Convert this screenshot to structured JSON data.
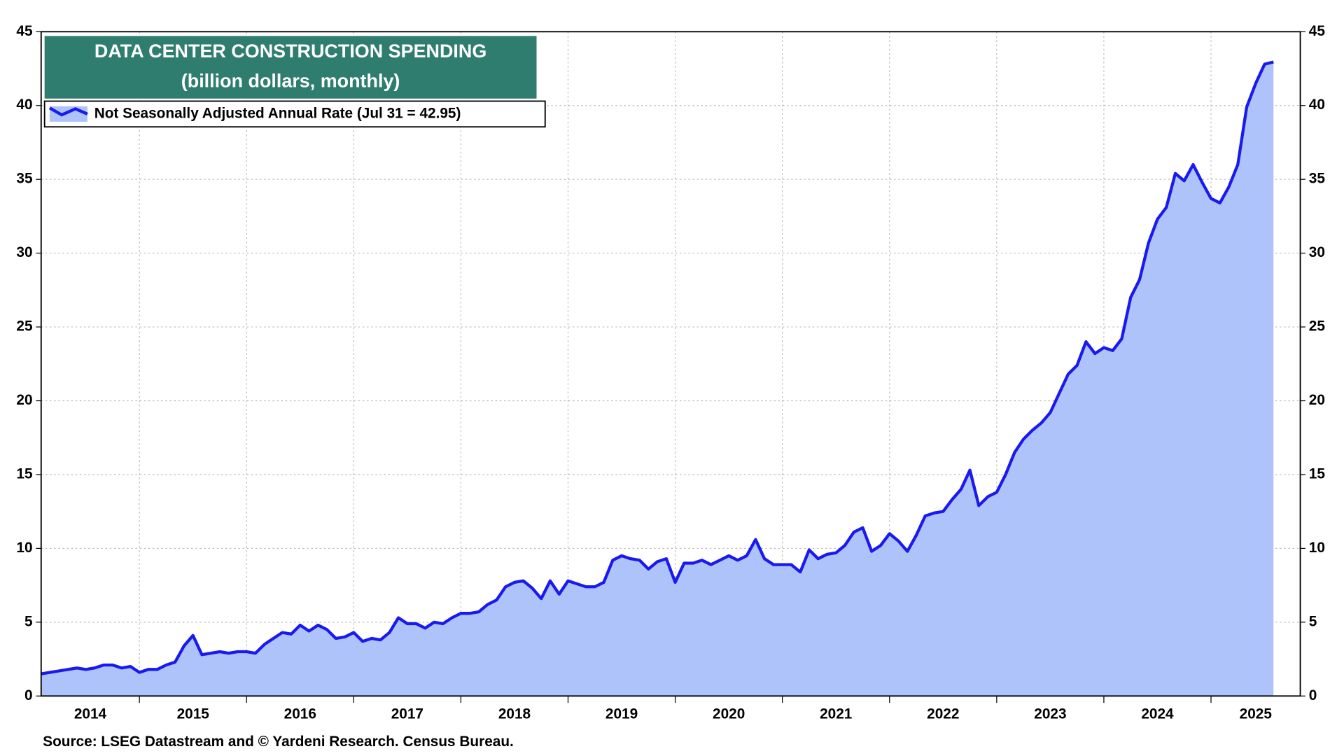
{
  "chart_data": {
    "type": "area",
    "title": "DATA CENTER CONSTRUCTION SPENDING",
    "subtitle": "(billion dollars, monthly)",
    "source": "Source: LSEG Datastream and © Yardeni Research. Census Bureau.",
    "x": [
      2014.083,
      2014.167,
      2014.25,
      2014.333,
      2014.417,
      2014.5,
      2014.583,
      2014.667,
      2014.75,
      2014.833,
      2014.917,
      2015,
      2015.083,
      2015.167,
      2015.25,
      2015.333,
      2015.417,
      2015.5,
      2015.583,
      2015.667,
      2015.75,
      2015.833,
      2015.917,
      2016,
      2016.083,
      2016.167,
      2016.25,
      2016.333,
      2016.417,
      2016.5,
      2016.583,
      2016.667,
      2016.75,
      2016.833,
      2016.917,
      2017,
      2017.083,
      2017.167,
      2017.25,
      2017.333,
      2017.417,
      2017.5,
      2017.583,
      2017.667,
      2017.75,
      2017.833,
      2017.917,
      2018,
      2018.083,
      2018.167,
      2018.25,
      2018.333,
      2018.417,
      2018.5,
      2018.583,
      2018.667,
      2018.75,
      2018.833,
      2018.917,
      2019,
      2019.083,
      2019.167,
      2019.25,
      2019.333,
      2019.417,
      2019.5,
      2019.583,
      2019.667,
      2019.75,
      2019.833,
      2019.917,
      2020,
      2020.083,
      2020.167,
      2020.25,
      2020.333,
      2020.417,
      2020.5,
      2020.583,
      2020.667,
      2020.75,
      2020.833,
      2020.917,
      2021,
      2021.083,
      2021.167,
      2021.25,
      2021.333,
      2021.417,
      2021.5,
      2021.583,
      2021.667,
      2021.75,
      2021.833,
      2021.917,
      2022,
      2022.083,
      2022.167,
      2022.25,
      2022.333,
      2022.417,
      2022.5,
      2022.583,
      2022.667,
      2022.75,
      2022.833,
      2022.917,
      2023,
      2023.083,
      2023.167,
      2023.25,
      2023.333,
      2023.417,
      2023.5,
      2023.583,
      2023.667,
      2023.75,
      2023.833,
      2023.917,
      2024,
      2024.083,
      2024.167,
      2024.25,
      2024.333,
      2024.417,
      2024.5,
      2024.583,
      2024.667,
      2024.75,
      2024.833,
      2024.917,
      2025,
      2025.083,
      2025.167,
      2025.25,
      2025.333,
      2025.417,
      2025.5,
      2025.583
    ],
    "series": [
      {
        "name": "Not Seasonally Adjusted Annual Rate (Jul 31 = 42.95)",
        "color": "#1a1aee",
        "fill": "#adc3fa",
        "values": [
          1.5,
          1.6,
          1.7,
          1.8,
          1.9,
          1.8,
          1.9,
          2.1,
          2.1,
          1.9,
          2.0,
          1.6,
          1.8,
          1.8,
          2.1,
          2.3,
          3.4,
          4.1,
          2.8,
          2.9,
          3.0,
          2.9,
          3.0,
          3.0,
          2.9,
          3.5,
          3.9,
          4.3,
          4.2,
          4.8,
          4.4,
          4.8,
          4.5,
          3.9,
          4.0,
          4.3,
          3.7,
          3.9,
          3.8,
          4.3,
          5.3,
          4.9,
          4.9,
          4.6,
          5.0,
          4.9,
          5.3,
          5.6,
          5.6,
          5.7,
          6.2,
          6.5,
          7.4,
          7.7,
          7.8,
          7.3,
          6.6,
          7.8,
          6.9,
          7.8,
          7.6,
          7.4,
          7.4,
          7.7,
          9.2,
          9.5,
          9.3,
          9.2,
          8.6,
          9.1,
          9.3,
          7.7,
          9.0,
          9.0,
          9.2,
          8.9,
          9.2,
          9.5,
          9.2,
          9.5,
          10.6,
          9.3,
          8.9,
          8.9,
          8.9,
          8.4,
          9.9,
          9.3,
          9.6,
          9.7,
          10.2,
          11.1,
          11.4,
          9.8,
          10.2,
          11.0,
          10.5,
          9.8,
          10.9,
          12.2,
          12.4,
          12.5,
          13.3,
          14.0,
          15.3,
          12.9,
          13.5,
          13.8,
          15.0,
          16.5,
          17.4,
          18.0,
          18.5,
          19.2,
          20.5,
          21.8,
          22.4,
          24.0,
          23.2,
          23.6,
          23.4,
          24.2,
          27.0,
          28.2,
          30.7,
          32.3,
          33.1,
          35.4,
          34.9,
          36.0,
          34.8,
          33.7,
          33.4,
          34.5,
          36.0,
          39.9,
          41.5,
          42.8,
          42.95
        ]
      }
    ],
    "xlim": [
      2014.083,
      2025.833
    ],
    "xticks": [
      2014,
      2015,
      2016,
      2017,
      2018,
      2019,
      2020,
      2021,
      2022,
      2023,
      2024,
      2025
    ],
    "ylim": [
      0,
      45
    ],
    "yticks": [
      0,
      5,
      10,
      15,
      20,
      25,
      30,
      35,
      40,
      45
    ],
    "grid": true
  }
}
